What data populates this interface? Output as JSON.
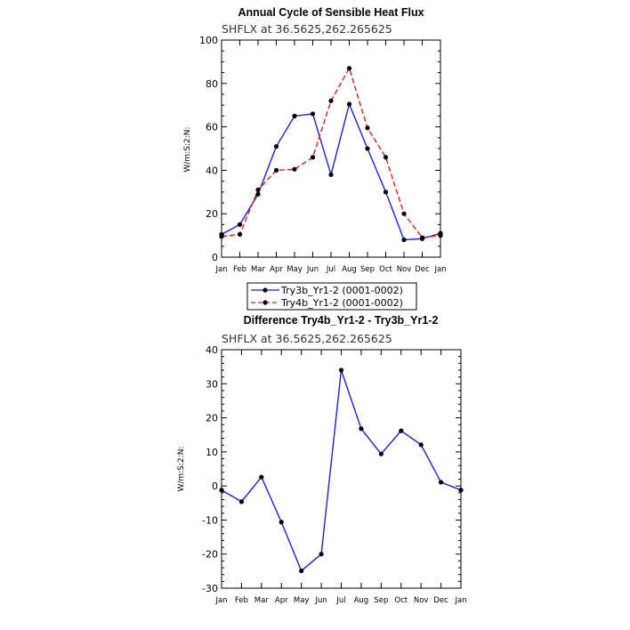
{
  "chart_data": [
    {
      "type": "line",
      "title": "Annual Cycle of Sensible Heat Flux",
      "subtitle": "SHFLX at 36.5625,262.265625",
      "ylabel": "W/m:S:2:N:",
      "xlabel": "",
      "ylim": [
        0,
        100
      ],
      "yticks": [
        0,
        20,
        40,
        60,
        80,
        100
      ],
      "categories": [
        "Jan",
        "Feb",
        "Mar",
        "Apr",
        "May",
        "Jun",
        "Jul",
        "Aug",
        "Sep",
        "Oct",
        "Nov",
        "Dec",
        "Jan"
      ],
      "grid": false,
      "legend_placement": "bottom",
      "series": [
        {
          "name": "Try3b_Yr1-2 (0001-0002)",
          "color": "#1f1fe0",
          "dash": "solid",
          "values": [
            10.5,
            15,
            29,
            51,
            65,
            66,
            38,
            70.5,
            50,
            30,
            8,
            8.5,
            11
          ]
        },
        {
          "name": "Try4b_Yr1-2 (0001-0002)",
          "color": "#e01f1f",
          "dash": "dashed",
          "values": [
            9.5,
            10.5,
            31,
            40,
            40.5,
            46,
            72,
            87,
            59.5,
            46,
            20,
            9,
            10
          ]
        }
      ]
    },
    {
      "type": "line",
      "title": "Difference Try4b_Yr1-2 - Try3b_Yr1-2",
      "subtitle": "SHFLX at 36.5625,262.265625",
      "ylabel": "W/m:S:2:N:",
      "xlabel": "",
      "ylim": [
        -30,
        40
      ],
      "yticks": [
        -30,
        -20,
        -10,
        0,
        10,
        20,
        30,
        40
      ],
      "categories": [
        "Jan",
        "Feb",
        "Mar",
        "Apr",
        "May",
        "Jun",
        "Jul",
        "Aug",
        "Sep",
        "Oct",
        "Nov",
        "Dec",
        "Jan"
      ],
      "grid": false,
      "series": [
        {
          "color": "#1f1fe0",
          "dash": "solid",
          "values": [
            -1.2,
            -4.6,
            2.6,
            -10.6,
            -24.9,
            -20,
            34,
            16.8,
            9.4,
            16.2,
            12.1,
            1.1,
            -1.2
          ]
        }
      ]
    }
  ]
}
